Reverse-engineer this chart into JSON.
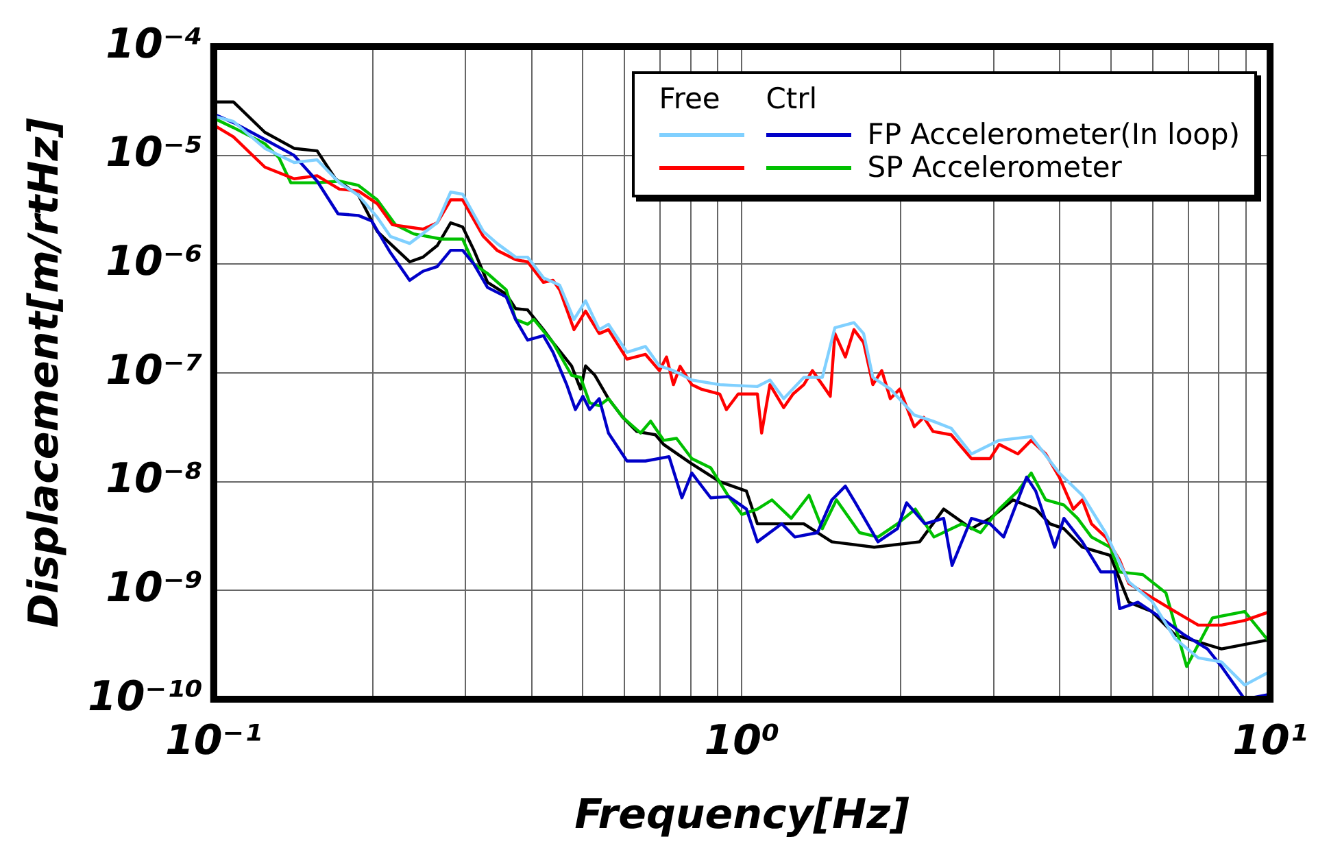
{
  "chart_data": {
    "type": "line",
    "xlabel": "Frequency[Hz]",
    "ylabel": "Displacement[m/rtHz]",
    "log": "xy",
    "grid": true,
    "legend": "top right",
    "line_style": "solid",
    "marker": "none",
    "annotations": [
      "Free",
      "Ctrl"
    ],
    "xlim": [
      0.1,
      10
    ],
    "ylim": [
      1e-10,
      0.0001
    ],
    "xticks": [
      {
        "value": 0.1,
        "label": "10⁻¹"
      },
      {
        "value": 0.2,
        "label": null
      },
      {
        "value": 0.3,
        "label": null
      },
      {
        "value": 0.4,
        "label": null
      },
      {
        "value": 0.5,
        "label": null
      },
      {
        "value": 0.6,
        "label": null
      },
      {
        "value": 0.7,
        "label": null
      },
      {
        "value": 0.8,
        "label": null
      },
      {
        "value": 0.9,
        "label": null
      },
      {
        "value": 1,
        "label": "10⁰"
      },
      {
        "value": 2,
        "label": null
      },
      {
        "value": 3,
        "label": null
      },
      {
        "value": 4,
        "label": null
      },
      {
        "value": 5,
        "label": null
      },
      {
        "value": 6,
        "label": null
      },
      {
        "value": 7,
        "label": null
      },
      {
        "value": 8,
        "label": null
      },
      {
        "value": 9,
        "label": null
      },
      {
        "value": 10,
        "label": "10¹"
      }
    ],
    "yticks": [
      {
        "value": 1e-10,
        "label": "10⁻¹⁰"
      },
      {
        "value": 1e-09,
        "label": "10⁻⁹"
      },
      {
        "value": 1e-08,
        "label": "10⁻⁸"
      },
      {
        "value": 1e-07,
        "label": "10⁻⁷"
      },
      {
        "value": 1e-06,
        "label": "10⁻⁶"
      },
      {
        "value": 1e-05,
        "label": "10⁻⁵"
      },
      {
        "value": 0.0001,
        "label": "10⁻⁴"
      }
    ],
    "series": [
      {
        "color": "#80d0ff",
        "x": [
          0.1,
          0.109,
          0.125,
          0.142,
          0.157,
          0.173,
          0.188,
          0.204,
          0.216,
          0.235,
          0.265,
          0.281,
          0.296,
          0.324,
          0.344,
          0.373,
          0.393,
          0.421,
          0.452,
          0.481,
          0.506,
          0.537,
          0.559,
          0.606,
          0.657,
          0.698,
          0.742,
          0.804,
          0.908,
          1.07,
          1.13,
          1.2,
          1.31,
          1.42,
          1.5,
          1.63,
          1.7,
          1.77,
          1.91,
          2.12,
          2.3,
          2.49,
          2.72,
          3.07,
          3.53,
          3.99,
          4.41,
          4.88,
          5.4,
          5.97,
          6.61,
          7.31,
          8.09,
          8.95,
          10
        ],
        "values": [
          2.3e-05,
          2.05e-05,
          1.16e-05,
          8.6e-06,
          9.1e-06,
          5.6e-06,
          4.3e-06,
          2.7e-06,
          1.8e-06,
          1.55e-06,
          2.4e-06,
          4.6e-06,
          4.4e-06,
          2e-06,
          1.55e-06,
          1.16e-06,
          1.16e-06,
          7.5e-07,
          6.4e-07,
          3.1e-07,
          4.6e-07,
          2.5e-07,
          2.8e-07,
          1.55e-07,
          1.75e-07,
          1.16e-07,
          1.05e-07,
          8.6e-08,
          7.8e-08,
          7.5e-08,
          8.6e-08,
          5.8e-08,
          9.1e-08,
          9.1e-08,
          2.6e-07,
          2.9e-07,
          2.3e-07,
          9.1e-08,
          7.1e-08,
          4.1e-08,
          3.6e-08,
          3.1e-08,
          1.8e-08,
          2.4e-08,
          2.6e-08,
          1.2e-08,
          7.5e-09,
          3.4e-09,
          1.2e-09,
          8e-10,
          3.6e-10,
          2.4e-10,
          2.2e-10,
          1.35e-10,
          1.8e-10
        ]
      },
      {
        "name": "FP Accelerometer(In loop)",
        "color": "#0000c8",
        "x": [
          0.1,
          0.109,
          0.125,
          0.142,
          0.157,
          0.172,
          0.188,
          0.199,
          0.216,
          0.235,
          0.249,
          0.265,
          0.281,
          0.296,
          0.311,
          0.33,
          0.358,
          0.373,
          0.393,
          0.421,
          0.439,
          0.466,
          0.484,
          0.5,
          0.515,
          0.537,
          0.559,
          0.606,
          0.657,
          0.728,
          0.77,
          0.804,
          0.873,
          0.944,
          1.02,
          1.07,
          1.19,
          1.26,
          1.39,
          1.48,
          1.57,
          1.64,
          1.81,
          1.97,
          2.05,
          2.22,
          2.41,
          2.5,
          2.72,
          2.95,
          3.13,
          3.46,
          3.6,
          3.91,
          4.07,
          4.41,
          4.78,
          5.08,
          5.19,
          5.62,
          6.22,
          6.88,
          7.61,
          8.09,
          8.95,
          9.9
        ],
        "values": [
          2.4e-05,
          2e-05,
          1.4e-05,
          1e-05,
          5.8e-06,
          2.9e-06,
          2.8e-06,
          2.5e-06,
          1.28e-06,
          7.1e-07,
          8.6e-07,
          9.5e-07,
          1.34e-06,
          1.34e-06,
          1e-06,
          6.1e-07,
          5e-07,
          3.1e-07,
          2e-07,
          2.2e-07,
          1.55e-07,
          7.8e-08,
          4.6e-08,
          6.1e-08,
          4.6e-08,
          5.8e-08,
          2.8e-08,
          1.55e-08,
          1.55e-08,
          1.7e-08,
          7.1e-09,
          1.2e-08,
          7.1e-09,
          7.3e-09,
          5.6e-09,
          2.8e-09,
          4.1e-09,
          3.1e-09,
          3.4e-09,
          6.8e-09,
          9.1e-09,
          6.4e-09,
          2.8e-09,
          3.7e-09,
          6.4e-09,
          4.1e-09,
          4.6e-09,
          1.7e-09,
          4.6e-09,
          4.1e-09,
          3.1e-09,
          1.1e-08,
          8.2e-09,
          2.5e-09,
          4.6e-09,
          2.8e-09,
          1.48e-09,
          1.48e-09,
          6.8e-10,
          7.8e-10,
          5.6e-10,
          3.9e-10,
          2.9e-10,
          2e-10,
          1e-10,
          1.1e-10
        ]
      },
      {
        "color": "#ff0000",
        "x": [
          0.1,
          0.109,
          0.125,
          0.142,
          0.157,
          0.173,
          0.188,
          0.204,
          0.218,
          0.249,
          0.265,
          0.281,
          0.296,
          0.324,
          0.344,
          0.373,
          0.393,
          0.421,
          0.439,
          0.452,
          0.481,
          0.506,
          0.537,
          0.559,
          0.606,
          0.657,
          0.698,
          0.72,
          0.742,
          0.764,
          0.804,
          0.837,
          0.908,
          0.935,
          0.984,
          1.07,
          1.09,
          1.13,
          1.2,
          1.25,
          1.31,
          1.36,
          1.42,
          1.47,
          1.5,
          1.57,
          1.63,
          1.7,
          1.77,
          1.84,
          1.91,
          1.99,
          2.12,
          2.21,
          2.3,
          2.49,
          2.72,
          2.95,
          3.07,
          3.33,
          3.53,
          3.76,
          3.99,
          4.24,
          4.41,
          4.59,
          4.88,
          5.19,
          5.4,
          5.97,
          6.61,
          7.31,
          8.09,
          8.95,
          10
        ],
        "values": [
          1.9e-05,
          1.48e-05,
          7.8e-06,
          6.1e-06,
          6.5e-06,
          4.9e-06,
          4.7e-06,
          3.6e-06,
          2.3e-06,
          2.1e-06,
          2.4e-06,
          3.9e-06,
          3.9e-06,
          1.8e-06,
          1.34e-06,
          1.1e-06,
          1.05e-06,
          6.8e-07,
          7.1e-07,
          5.8e-07,
          2.5e-07,
          3.7e-07,
          2.3e-07,
          2.5e-07,
          1.34e-07,
          1.48e-07,
          1.05e-07,
          1.4e-07,
          7.8e-08,
          1.15e-07,
          7.8e-08,
          7.1e-08,
          6.4e-08,
          4.6e-08,
          6.4e-08,
          6.4e-08,
          2.8e-08,
          7.8e-08,
          4.8e-08,
          6.4e-08,
          7.8e-08,
          1.05e-07,
          7.8e-08,
          6.1e-08,
          2.3e-07,
          1.4e-07,
          2.5e-07,
          1.9e-07,
          7.8e-08,
          1.05e-07,
          5.8e-08,
          7.1e-08,
          3.2e-08,
          3.9e-08,
          2.9e-08,
          2.7e-08,
          1.63e-08,
          1.63e-08,
          2.2e-08,
          1.8e-08,
          2.4e-08,
          1.8e-08,
          1.1e-08,
          5.6e-09,
          6.8e-09,
          4.1e-09,
          3.1e-09,
          1.9e-09,
          1.16e-09,
          8.6e-10,
          6.4e-10,
          4.8e-10,
          4.8e-10,
          5.3e-10,
          6.4e-10
        ]
      },
      {
        "name": "SP Accelerometer",
        "color": "#00c000",
        "x": [
          0.1,
          0.109,
          0.125,
          0.133,
          0.14,
          0.157,
          0.173,
          0.188,
          0.204,
          0.221,
          0.239,
          0.27,
          0.296,
          0.311,
          0.33,
          0.358,
          0.373,
          0.393,
          0.404,
          0.439,
          0.476,
          0.495,
          0.515,
          0.537,
          0.559,
          0.595,
          0.643,
          0.672,
          0.711,
          0.752,
          0.804,
          0.873,
          0.944,
          1.0,
          1.07,
          1.14,
          1.24,
          1.34,
          1.42,
          1.51,
          1.67,
          1.81,
          1.97,
          2.13,
          2.31,
          2.61,
          2.83,
          3.07,
          3.33,
          3.53,
          3.76,
          4.07,
          4.32,
          4.59,
          4.98,
          5.19,
          5.74,
          6.35,
          6.95,
          7.78,
          8.95,
          9.9
        ],
        "values": [
          2.2e-05,
          1.8e-05,
          1.28e-05,
          9.5e-06,
          5.6e-06,
          5.6e-06,
          5.8e-06,
          5.3e-06,
          3.9e-06,
          2.3e-06,
          1.9e-06,
          1.7e-06,
          1.7e-06,
          1e-06,
          8.2e-07,
          5.8e-07,
          3.1e-07,
          2.8e-07,
          3.1e-07,
          1.9e-07,
          9.5e-08,
          9.1e-08,
          5.3e-08,
          5e-08,
          5.8e-08,
          3.9e-08,
          2.8e-08,
          3.6e-08,
          2.4e-08,
          2.5e-08,
          1.63e-08,
          1.34e-08,
          7.3e-09,
          5e-09,
          5.6e-09,
          6.8e-09,
          4.6e-09,
          7.5e-09,
          3.7e-09,
          6.8e-09,
          3.4e-09,
          3.1e-09,
          4.1e-09,
          5.6e-09,
          3.1e-09,
          4.1e-09,
          3.4e-09,
          5.6e-09,
          8.2e-09,
          1.2e-08,
          6.8e-09,
          6.1e-09,
          4.6e-09,
          3.1e-09,
          2.5e-09,
          1.48e-09,
          1.4e-09,
          9.5e-10,
          2e-10,
          5.6e-10,
          6.4e-10,
          3.5e-10
        ]
      },
      {
        "color": "#000000",
        "x": [
          0.1,
          0.109,
          0.125,
          0.142,
          0.157,
          0.17,
          0.188,
          0.204,
          0.235,
          0.249,
          0.265,
          0.281,
          0.296,
          0.311,
          0.33,
          0.358,
          0.373,
          0.393,
          0.421,
          0.439,
          0.476,
          0.495,
          0.506,
          0.527,
          0.559,
          0.595,
          0.632,
          0.686,
          0.711,
          0.8,
          0.908,
          1.02,
          1.07,
          1.31,
          1.48,
          1.78,
          2.17,
          2.41,
          2.72,
          2.95,
          3.26,
          3.6,
          3.83,
          4.07,
          4.41,
          4.98,
          5.4,
          5.97,
          6.61,
          8.09,
          9.9
        ],
        "values": [
          3.1e-05,
          3.1e-05,
          1.63e-05,
          1.16e-05,
          1.1e-05,
          6.1e-06,
          4.3e-06,
          2e-06,
          1.05e-06,
          1.16e-06,
          1.48e-06,
          2.4e-06,
          2.2e-06,
          1.34e-06,
          6.8e-07,
          5.3e-07,
          3.9e-07,
          3.8e-07,
          2.5e-07,
          1.9e-07,
          1.16e-07,
          7.1e-08,
          1.16e-07,
          9.5e-08,
          5.8e-08,
          3.9e-08,
          2.9e-08,
          2.7e-08,
          2.2e-08,
          1.48e-08,
          1e-08,
          8.2e-09,
          4.1e-09,
          4.1e-09,
          2.8e-09,
          2.5e-09,
          2.8e-09,
          5.6e-09,
          3.7e-09,
          4.6e-09,
          6.8e-09,
          5.6e-09,
          4.1e-09,
          3.7e-09,
          2.5e-09,
          2.1e-09,
          7.8e-10,
          6.4e-10,
          3.9e-10,
          2.9e-10,
          3.5e-10
        ]
      }
    ]
  }
}
